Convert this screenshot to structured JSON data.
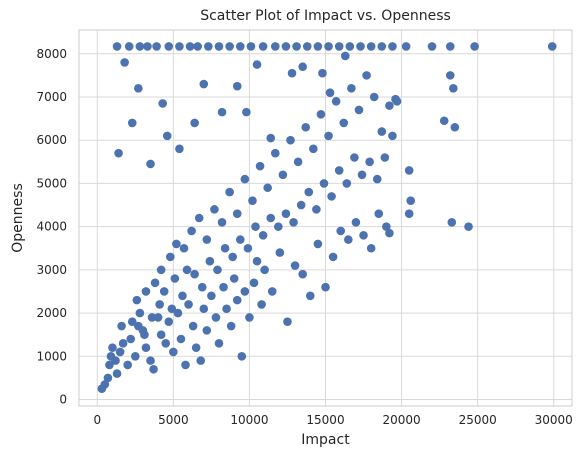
{
  "chart_data": {
    "type": "scatter",
    "title": "Scatter Plot of Impact vs. Openness",
    "xlabel": "Impact",
    "ylabel": "Openness",
    "xlim": [
      -1200,
      31200
    ],
    "ylim": [
      -150,
      8550
    ],
    "xticks": [
      0,
      5000,
      10000,
      15000,
      20000,
      25000,
      30000
    ],
    "yticks": [
      0,
      1000,
      2000,
      3000,
      4000,
      5000,
      6000,
      7000,
      8000
    ],
    "grid": true,
    "marker_color": "#4C72B0",
    "points": [
      {
        "x": 300,
        "y": 250
      },
      {
        "x": 500,
        "y": 350
      },
      {
        "x": 700,
        "y": 500
      },
      {
        "x": 800,
        "y": 800
      },
      {
        "x": 1000,
        "y": 1200
      },
      {
        "x": 1200,
        "y": 900
      },
      {
        "x": 1300,
        "y": 600
      },
      {
        "x": 1500,
        "y": 1100
      },
      {
        "x": 1700,
        "y": 1300
      },
      {
        "x": 2000,
        "y": 800
      },
      {
        "x": 2200,
        "y": 1400
      },
      {
        "x": 2500,
        "y": 1000
      },
      {
        "x": 2700,
        "y": 1700
      },
      {
        "x": 3000,
        "y": 1600
      },
      {
        "x": 3200,
        "y": 1200
      },
      {
        "x": 3500,
        "y": 900
      },
      {
        "x": 3700,
        "y": 700
      },
      {
        "x": 4000,
        "y": 1900
      },
      {
        "x": 4200,
        "y": 1500
      },
      {
        "x": 4500,
        "y": 1300
      },
      {
        "x": 4700,
        "y": 1800
      },
      {
        "x": 5000,
        "y": 1100
      },
      {
        "x": 5300,
        "y": 2000
      },
      {
        "x": 5500,
        "y": 1400
      },
      {
        "x": 5800,
        "y": 800
      },
      {
        "x": 6000,
        "y": 2200
      },
      {
        "x": 6300,
        "y": 1700
      },
      {
        "x": 6500,
        "y": 1200
      },
      {
        "x": 6800,
        "y": 900
      },
      {
        "x": 7000,
        "y": 2100
      },
      {
        "x": 7200,
        "y": 1600
      },
      {
        "x": 7500,
        "y": 2400
      },
      {
        "x": 7800,
        "y": 1900
      },
      {
        "x": 8000,
        "y": 1300
      },
      {
        "x": 8300,
        "y": 2600
      },
      {
        "x": 8500,
        "y": 2100
      },
      {
        "x": 8800,
        "y": 1700
      },
      {
        "x": 9000,
        "y": 2800
      },
      {
        "x": 9200,
        "y": 2300
      },
      {
        "x": 9500,
        "y": 1000
      },
      {
        "x": 9700,
        "y": 2500
      },
      {
        "x": 10000,
        "y": 1900
      },
      {
        "x": 10300,
        "y": 2700
      },
      {
        "x": 10500,
        "y": 3200
      },
      {
        "x": 10800,
        "y": 2200
      },
      {
        "x": 11000,
        "y": 3000
      },
      {
        "x": 11500,
        "y": 2500
      },
      {
        "x": 12000,
        "y": 3400
      },
      {
        "x": 12500,
        "y": 1800
      },
      {
        "x": 13000,
        "y": 3100
      },
      {
        "x": 13500,
        "y": 2900
      },
      {
        "x": 14000,
        "y": 2400
      },
      {
        "x": 14500,
        "y": 3600
      },
      {
        "x": 15000,
        "y": 2600
      },
      {
        "x": 15500,
        "y": 3300
      },
      {
        "x": 16000,
        "y": 3900
      },
      {
        "x": 16500,
        "y": 3700
      },
      {
        "x": 17000,
        "y": 4100
      },
      {
        "x": 17500,
        "y": 3800
      },
      {
        "x": 18000,
        "y": 3500
      },
      {
        "x": 18500,
        "y": 4300
      },
      {
        "x": 19000,
        "y": 4000
      },
      {
        "x": 19200,
        "y": 3850
      },
      {
        "x": 20500,
        "y": 4300
      },
      {
        "x": 20600,
        "y": 4600
      },
      {
        "x": 23300,
        "y": 4100
      },
      {
        "x": 24400,
        "y": 4000
      },
      {
        "x": 2800,
        "y": 2000
      },
      {
        "x": 3200,
        "y": 2500
      },
      {
        "x": 3800,
        "y": 2700
      },
      {
        "x": 4200,
        "y": 3000
      },
      {
        "x": 4800,
        "y": 3300
      },
      {
        "x": 5200,
        "y": 3600
      },
      {
        "x": 5700,
        "y": 3500
      },
      {
        "x": 6200,
        "y": 3900
      },
      {
        "x": 6700,
        "y": 4200
      },
      {
        "x": 7200,
        "y": 3700
      },
      {
        "x": 7700,
        "y": 4400
      },
      {
        "x": 8200,
        "y": 4100
      },
      {
        "x": 8700,
        "y": 4800
      },
      {
        "x": 9200,
        "y": 4300
      },
      {
        "x": 9700,
        "y": 5100
      },
      {
        "x": 10200,
        "y": 4600
      },
      {
        "x": 10700,
        "y": 5400
      },
      {
        "x": 11200,
        "y": 4900
      },
      {
        "x": 11700,
        "y": 5700
      },
      {
        "x": 12200,
        "y": 5200
      },
      {
        "x": 12700,
        "y": 6000
      },
      {
        "x": 13200,
        "y": 5500
      },
      {
        "x": 13700,
        "y": 6300
      },
      {
        "x": 14200,
        "y": 5800
      },
      {
        "x": 14700,
        "y": 6600
      },
      {
        "x": 15200,
        "y": 6100
      },
      {
        "x": 15700,
        "y": 6900
      },
      {
        "x": 16200,
        "y": 6400
      },
      {
        "x": 16700,
        "y": 7200
      },
      {
        "x": 17200,
        "y": 6700
      },
      {
        "x": 17700,
        "y": 7500
      },
      {
        "x": 18200,
        "y": 7000
      },
      {
        "x": 18700,
        "y": 6200
      },
      {
        "x": 19200,
        "y": 6800
      },
      {
        "x": 19600,
        "y": 6950
      },
      {
        "x": 20500,
        "y": 5300
      },
      {
        "x": 22800,
        "y": 6450
      },
      {
        "x": 23200,
        "y": 7500
      },
      {
        "x": 23400,
        "y": 7200
      },
      {
        "x": 23500,
        "y": 6300
      },
      {
        "x": 1400,
        "y": 5700
      },
      {
        "x": 1800,
        "y": 7800
      },
      {
        "x": 2300,
        "y": 6400
      },
      {
        "x": 2700,
        "y": 7200
      },
      {
        "x": 3500,
        "y": 5450
      },
      {
        "x": 4300,
        "y": 6850
      },
      {
        "x": 4600,
        "y": 6100
      },
      {
        "x": 5400,
        "y": 5800
      },
      {
        "x": 6400,
        "y": 6400
      },
      {
        "x": 7000,
        "y": 7300
      },
      {
        "x": 8200,
        "y": 6650
      },
      {
        "x": 9200,
        "y": 7250
      },
      {
        "x": 9800,
        "y": 6650
      },
      {
        "x": 10500,
        "y": 7750
      },
      {
        "x": 11400,
        "y": 6050
      },
      {
        "x": 12800,
        "y": 7550
      },
      {
        "x": 13500,
        "y": 7700
      },
      {
        "x": 14800,
        "y": 7550
      },
      {
        "x": 15300,
        "y": 7100
      },
      {
        "x": 16300,
        "y": 7950
      },
      {
        "x": 1300,
        "y": 8170
      },
      {
        "x": 2100,
        "y": 8170
      },
      {
        "x": 2800,
        "y": 8170
      },
      {
        "x": 3300,
        "y": 8170
      },
      {
        "x": 3900,
        "y": 8170
      },
      {
        "x": 4700,
        "y": 8170
      },
      {
        "x": 5400,
        "y": 8170
      },
      {
        "x": 6100,
        "y": 8170
      },
      {
        "x": 6600,
        "y": 8170
      },
      {
        "x": 7300,
        "y": 8170
      },
      {
        "x": 8000,
        "y": 8170
      },
      {
        "x": 8700,
        "y": 8170
      },
      {
        "x": 9400,
        "y": 8170
      },
      {
        "x": 10100,
        "y": 8170
      },
      {
        "x": 10900,
        "y": 8170
      },
      {
        "x": 11700,
        "y": 8170
      },
      {
        "x": 12400,
        "y": 8170
      },
      {
        "x": 13100,
        "y": 8170
      },
      {
        "x": 13800,
        "y": 8170
      },
      {
        "x": 14500,
        "y": 8170
      },
      {
        "x": 15200,
        "y": 8170
      },
      {
        "x": 15900,
        "y": 8170
      },
      {
        "x": 16600,
        "y": 8170
      },
      {
        "x": 17300,
        "y": 8170
      },
      {
        "x": 18000,
        "y": 8170
      },
      {
        "x": 18700,
        "y": 8170
      },
      {
        "x": 19400,
        "y": 8170
      },
      {
        "x": 20300,
        "y": 8170
      },
      {
        "x": 22000,
        "y": 8170
      },
      {
        "x": 23200,
        "y": 8170
      },
      {
        "x": 24800,
        "y": 8170
      },
      {
        "x": 29900,
        "y": 8170
      },
      {
        "x": 900,
        "y": 1000
      },
      {
        "x": 1600,
        "y": 1700
      },
      {
        "x": 2300,
        "y": 1800
      },
      {
        "x": 2600,
        "y": 2300
      },
      {
        "x": 3100,
        "y": 1500
      },
      {
        "x": 3600,
        "y": 1900
      },
      {
        "x": 4100,
        "y": 2200
      },
      {
        "x": 4400,
        "y": 2500
      },
      {
        "x": 4900,
        "y": 2100
      },
      {
        "x": 5100,
        "y": 2800
      },
      {
        "x": 5600,
        "y": 2400
      },
      {
        "x": 5900,
        "y": 3000
      },
      {
        "x": 6400,
        "y": 2900
      },
      {
        "x": 6900,
        "y": 2600
      },
      {
        "x": 7400,
        "y": 3200
      },
      {
        "x": 7900,
        "y": 3000
      },
      {
        "x": 8400,
        "y": 3500
      },
      {
        "x": 8900,
        "y": 3300
      },
      {
        "x": 9400,
        "y": 3700
      },
      {
        "x": 9900,
        "y": 3500
      },
      {
        "x": 10400,
        "y": 4000
      },
      {
        "x": 10900,
        "y": 3800
      },
      {
        "x": 11400,
        "y": 4200
      },
      {
        "x": 11900,
        "y": 4000
      },
      {
        "x": 12400,
        "y": 4300
      },
      {
        "x": 12900,
        "y": 4100
      },
      {
        "x": 13400,
        "y": 4500
      },
      {
        "x": 13900,
        "y": 4800
      },
      {
        "x": 14400,
        "y": 4400
      },
      {
        "x": 14900,
        "y": 5000
      },
      {
        "x": 15400,
        "y": 4700
      },
      {
        "x": 15900,
        "y": 5300
      },
      {
        "x": 16400,
        "y": 5000
      },
      {
        "x": 16900,
        "y": 5600
      },
      {
        "x": 17400,
        "y": 5200
      },
      {
        "x": 17900,
        "y": 5500
      },
      {
        "x": 18400,
        "y": 5100
      },
      {
        "x": 18900,
        "y": 5600
      },
      {
        "x": 19400,
        "y": 6100
      },
      {
        "x": 19700,
        "y": 6900
      }
    ]
  }
}
